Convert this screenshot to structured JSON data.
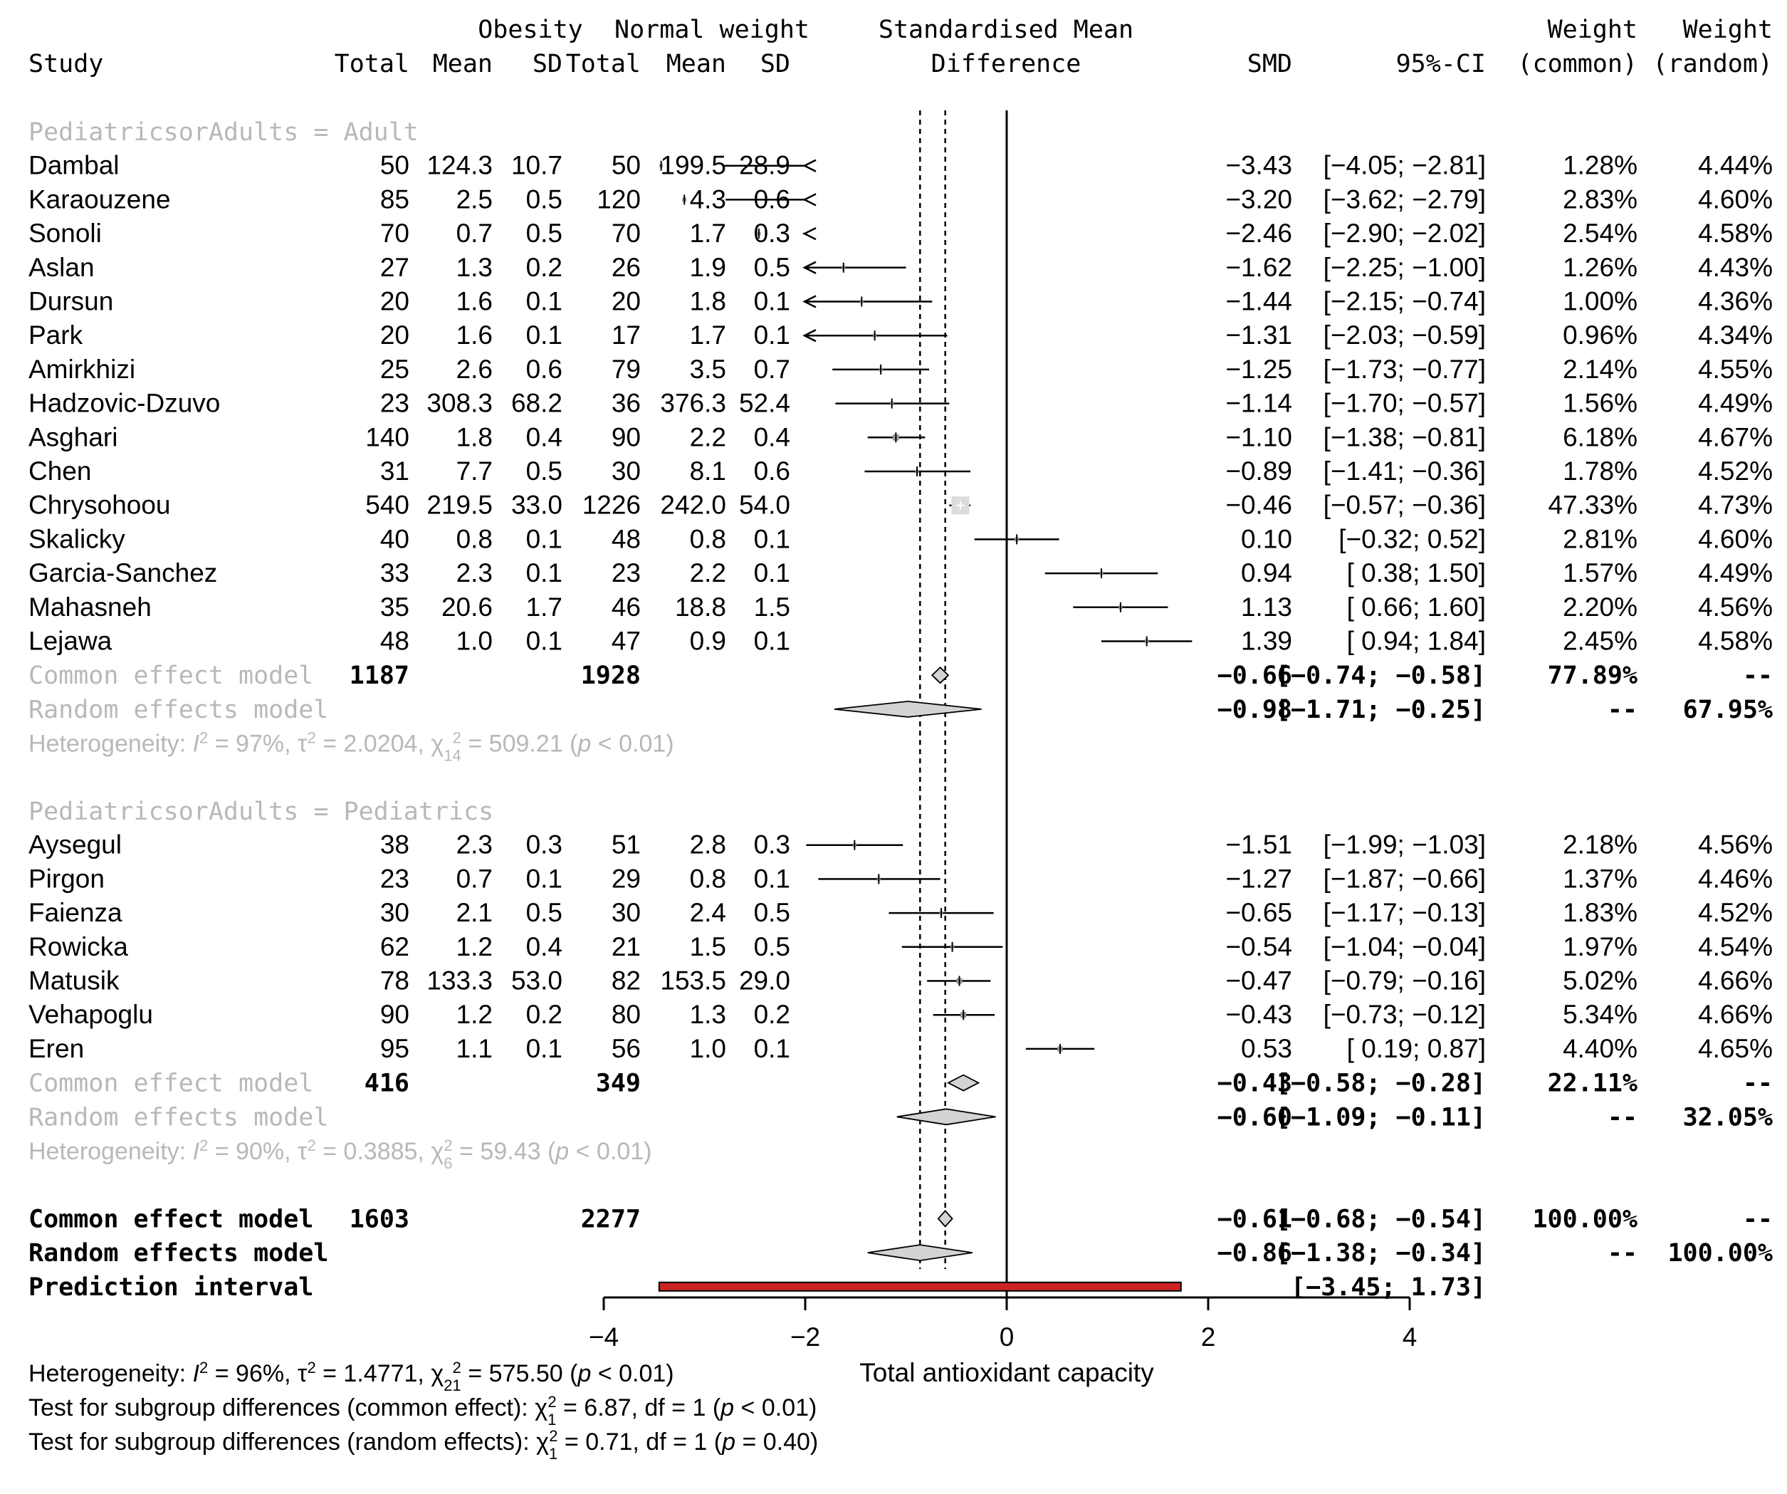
{
  "header": {
    "obesity": "Obesity",
    "normal_weight": "Normal weight",
    "smd_head_1": "Standardised Mean",
    "smd_head_2": "Difference",
    "weight_1": "Weight",
    "weight_2": "Weight",
    "study": "Study",
    "total_o": "Total",
    "mean_o": "Mean",
    "sd_o": "SD",
    "total_n": "Total",
    "mean_n": "Mean",
    "sd_n": "SD",
    "smd": "SMD",
    "ci": "95%-CI",
    "w_common": "(common)",
    "w_random": "(random)"
  },
  "chart_data": {
    "type": "forest",
    "title": "Standardised Mean Difference",
    "xlabel": "Total antioxidant capacity",
    "xlim": [
      -4,
      4
    ],
    "xticks": [
      "-4",
      "-2",
      "0",
      "2",
      "4"
    ],
    "common_overall_smd": -0.61,
    "random_overall_smd": -0.86,
    "groups": [
      {
        "label": "PediatricsorAdults = Adult",
        "studies": [
          {
            "study": "Dambal",
            "t1": "50",
            "m1": "124.3",
            "s1": "10.7",
            "t2": "50",
            "m2": "199.5",
            "s2": "28.9",
            "smd": -3.43,
            "lo": -4.05,
            "hi": -2.81,
            "smd_txt": "-3.43",
            "ci_txt": "[-4.05; -2.81]",
            "wc": "1.28%",
            "wr": "4.44%",
            "wcn": 1.28
          },
          {
            "study": "Karaouzene",
            "t1": "85",
            "m1": "2.5",
            "s1": "0.5",
            "t2": "120",
            "m2": "4.3",
            "s2": "0.6",
            "smd": -3.2,
            "lo": -3.62,
            "hi": -2.79,
            "smd_txt": "-3.20",
            "ci_txt": "[-3.62; -2.79]",
            "wc": "2.83%",
            "wr": "4.60%",
            "wcn": 2.83
          },
          {
            "study": "Sonoli",
            "t1": "70",
            "m1": "0.7",
            "s1": "0.5",
            "t2": "70",
            "m2": "1.7",
            "s2": "0.3",
            "smd": -2.46,
            "lo": -2.9,
            "hi": -2.02,
            "smd_txt": "-2.46",
            "ci_txt": "[-2.90; -2.02]",
            "wc": "2.54%",
            "wr": "4.58%",
            "wcn": 2.54
          },
          {
            "study": "Aslan",
            "t1": "27",
            "m1": "1.3",
            "s1": "0.2",
            "t2": "26",
            "m2": "1.9",
            "s2": "0.5",
            "smd": -1.62,
            "lo": -2.25,
            "hi": -1.0,
            "smd_txt": "-1.62",
            "ci_txt": "[-2.25; -1.00]",
            "wc": "1.26%",
            "wr": "4.43%",
            "wcn": 1.26
          },
          {
            "study": "Dursun",
            "t1": "20",
            "m1": "1.6",
            "s1": "0.1",
            "t2": "20",
            "m2": "1.8",
            "s2": "0.1",
            "smd": -1.44,
            "lo": -2.15,
            "hi": -0.74,
            "smd_txt": "-1.44",
            "ci_txt": "[-2.15; -0.74]",
            "wc": "1.00%",
            "wr": "4.36%",
            "wcn": 1.0
          },
          {
            "study": "Park",
            "t1": "20",
            "m1": "1.6",
            "s1": "0.1",
            "t2": "17",
            "m2": "1.7",
            "s2": "0.1",
            "smd": -1.31,
            "lo": -2.03,
            "hi": -0.59,
            "smd_txt": "-1.31",
            "ci_txt": "[-2.03; -0.59]",
            "wc": "0.96%",
            "wr": "4.34%",
            "wcn": 0.96
          },
          {
            "study": "Amirkhizi",
            "t1": "25",
            "m1": "2.6",
            "s1": "0.6",
            "t2": "79",
            "m2": "3.5",
            "s2": "0.7",
            "smd": -1.25,
            "lo": -1.73,
            "hi": -0.77,
            "smd_txt": "-1.25",
            "ci_txt": "[-1.73; -0.77]",
            "wc": "2.14%",
            "wr": "4.55%",
            "wcn": 2.14
          },
          {
            "study": "Hadzovic-Dzuvo",
            "t1": "23",
            "m1": "308.3",
            "s1": "68.2",
            "t2": "36",
            "m2": "376.3",
            "s2": "52.4",
            "smd": -1.14,
            "lo": -1.7,
            "hi": -0.57,
            "smd_txt": "-1.14",
            "ci_txt": "[-1.70; -0.57]",
            "wc": "1.56%",
            "wr": "4.49%",
            "wcn": 1.56
          },
          {
            "study": "Asghari",
            "t1": "140",
            "m1": "1.8",
            "s1": "0.4",
            "t2": "90",
            "m2": "2.2",
            "s2": "0.4",
            "smd": -1.1,
            "lo": -1.38,
            "hi": -0.81,
            "smd_txt": "-1.10",
            "ci_txt": "[-1.38; -0.81]",
            "wc": "6.18%",
            "wr": "4.67%",
            "wcn": 6.18
          },
          {
            "study": "Chen",
            "t1": "31",
            "m1": "7.7",
            "s1": "0.5",
            "t2": "30",
            "m2": "8.1",
            "s2": "0.6",
            "smd": -0.89,
            "lo": -1.41,
            "hi": -0.36,
            "smd_txt": "-0.89",
            "ci_txt": "[-1.41; -0.36]",
            "wc": "1.78%",
            "wr": "4.52%",
            "wcn": 1.78
          },
          {
            "study": "Chrysohoou",
            "t1": "540",
            "m1": "219.5",
            "s1": "33.0",
            "t2": "1226",
            "m2": "242.0",
            "s2": "54.0",
            "smd": -0.46,
            "lo": -0.57,
            "hi": -0.36,
            "smd_txt": "-0.46",
            "ci_txt": "[-0.57; -0.36]",
            "wc": "47.33%",
            "wr": "4.73%",
            "wcn": 47.33
          },
          {
            "study": "Skalicky",
            "t1": "40",
            "m1": "0.8",
            "s1": "0.1",
            "t2": "48",
            "m2": "0.8",
            "s2": "0.1",
            "smd": 0.1,
            "lo": -0.32,
            "hi": 0.52,
            "smd_txt": "0.10",
            "ci_txt": "[-0.32; 0.52]",
            "wc": "2.81%",
            "wr": "4.60%",
            "wcn": 2.81
          },
          {
            "study": "Garcia-Sanchez",
            "t1": "33",
            "m1": "2.3",
            "s1": "0.1",
            "t2": "23",
            "m2": "2.2",
            "s2": "0.1",
            "smd": 0.94,
            "lo": 0.38,
            "hi": 1.5,
            "smd_txt": "0.94",
            "ci_txt": "[ 0.38; 1.50]",
            "wc": "1.57%",
            "wr": "4.49%",
            "wcn": 1.57
          },
          {
            "study": "Mahasneh",
            "t1": "35",
            "m1": "20.6",
            "s1": "1.7",
            "t2": "46",
            "m2": "18.8",
            "s2": "1.5",
            "smd": 1.13,
            "lo": 0.66,
            "hi": 1.6,
            "smd_txt": "1.13",
            "ci_txt": "[ 0.66; 1.60]",
            "wc": "2.20%",
            "wr": "4.56%",
            "wcn": 2.2
          },
          {
            "study": "Lejawa",
            "t1": "48",
            "m1": "1.0",
            "s1": "0.1",
            "t2": "47",
            "m2": "0.9",
            "s2": "0.1",
            "smd": 1.39,
            "lo": 0.94,
            "hi": 1.84,
            "smd_txt": "1.39",
            "ci_txt": "[ 0.94; 1.84]",
            "wc": "2.45%",
            "wr": "4.58%",
            "wcn": 2.45
          }
        ],
        "common": {
          "label": "Common effect model",
          "t1": "1187",
          "t2": "1928",
          "smd": -0.66,
          "lo": -0.74,
          "hi": -0.58,
          "smd_txt": "-0.66",
          "ci_txt": "[-0.74; -0.58]",
          "wc": "77.89%",
          "wr": "--"
        },
        "random": {
          "label": "Random effects model",
          "smd": -0.98,
          "lo": -1.71,
          "hi": -0.25,
          "smd_txt": "-0.98",
          "ci_txt": "[-1.71; -0.25]",
          "wc": "--",
          "wr": "67.95%"
        },
        "het": {
          "a": "Heterogeneity: ",
          "i2": "I",
          "b": " = 97%, ",
          "tau": "τ",
          "c": " = 2.0204, ",
          "chi": "χ",
          "df": "14",
          "d": " = 509.21 (",
          "p": "p",
          "e": " < 0.01)"
        }
      },
      {
        "label": "PediatricsorAdults = Pediatrics",
        "studies": [
          {
            "study": "Aysegul",
            "t1": "38",
            "m1": "2.3",
            "s1": "0.3",
            "t2": "51",
            "m2": "2.8",
            "s2": "0.3",
            "smd": -1.51,
            "lo": -1.99,
            "hi": -1.03,
            "smd_txt": "-1.51",
            "ci_txt": "[-1.99; -1.03]",
            "wc": "2.18%",
            "wr": "4.56%",
            "wcn": 2.18
          },
          {
            "study": "Pirgon",
            "t1": "23",
            "m1": "0.7",
            "s1": "0.1",
            "t2": "29",
            "m2": "0.8",
            "s2": "0.1",
            "smd": -1.27,
            "lo": -1.87,
            "hi": -0.66,
            "smd_txt": "-1.27",
            "ci_txt": "[-1.87; -0.66]",
            "wc": "1.37%",
            "wr": "4.46%",
            "wcn": 1.37
          },
          {
            "study": "Faienza",
            "t1": "30",
            "m1": "2.1",
            "s1": "0.5",
            "t2": "30",
            "m2": "2.4",
            "s2": "0.5",
            "smd": -0.65,
            "lo": -1.17,
            "hi": -0.13,
            "smd_txt": "-0.65",
            "ci_txt": "[-1.17; -0.13]",
            "wc": "1.83%",
            "wr": "4.52%",
            "wcn": 1.83
          },
          {
            "study": "Rowicka",
            "t1": "62",
            "m1": "1.2",
            "s1": "0.4",
            "t2": "21",
            "m2": "1.5",
            "s2": "0.5",
            "smd": -0.54,
            "lo": -1.04,
            "hi": -0.04,
            "smd_txt": "-0.54",
            "ci_txt": "[-1.04; -0.04]",
            "wc": "1.97%",
            "wr": "4.54%",
            "wcn": 1.97
          },
          {
            "study": "Matusik",
            "t1": "78",
            "m1": "133.3",
            "s1": "53.0",
            "t2": "82",
            "m2": "153.5",
            "s2": "29.0",
            "smd": -0.47,
            "lo": -0.79,
            "hi": -0.16,
            "smd_txt": "-0.47",
            "ci_txt": "[-0.79; -0.16]",
            "wc": "5.02%",
            "wr": "4.66%",
            "wcn": 5.02
          },
          {
            "study": "Vehapoglu",
            "t1": "90",
            "m1": "1.2",
            "s1": "0.2",
            "t2": "80",
            "m2": "1.3",
            "s2": "0.2",
            "smd": -0.43,
            "lo": -0.73,
            "hi": -0.12,
            "smd_txt": "-0.43",
            "ci_txt": "[-0.73; -0.12]",
            "wc": "5.34%",
            "wr": "4.66%",
            "wcn": 5.34
          },
          {
            "study": "Eren",
            "t1": "95",
            "m1": "1.1",
            "s1": "0.1",
            "t2": "56",
            "m2": "1.0",
            "s2": "0.1",
            "smd": 0.53,
            "lo": 0.19,
            "hi": 0.87,
            "smd_txt": "0.53",
            "ci_txt": "[ 0.19; 0.87]",
            "wc": "4.40%",
            "wr": "4.65%",
            "wcn": 4.4
          }
        ],
        "common": {
          "label": "Common effect model",
          "t1": "416",
          "t2": "349",
          "smd": -0.43,
          "lo": -0.58,
          "hi": -0.28,
          "smd_txt": "-0.43",
          "ci_txt": "[-0.58; -0.28]",
          "wc": "22.11%",
          "wr": "--"
        },
        "random": {
          "label": "Random effects model",
          "smd": -0.6,
          "lo": -1.09,
          "hi": -0.11,
          "smd_txt": "-0.60",
          "ci_txt": "[-1.09; -0.11]",
          "wc": "--",
          "wr": "32.05%"
        },
        "het": {
          "a": "Heterogeneity: ",
          "i2": "I",
          "b": " = 90%, ",
          "tau": "τ",
          "c": " = 0.3885, ",
          "chi": "χ",
          "df": "6",
          "d": " = 59.43 (",
          "p": "p",
          "e": " < 0.01)"
        }
      }
    ],
    "overall": {
      "common": {
        "label": "Common effect model",
        "t1": "1603",
        "t2": "2277",
        "smd": -0.61,
        "lo": -0.68,
        "hi": -0.54,
        "smd_txt": "-0.61",
        "ci_txt": "[-0.68; -0.54]",
        "wc": "100.00%",
        "wr": "--"
      },
      "random": {
        "label": "Random effects model",
        "smd": -0.86,
        "lo": -1.38,
        "hi": -0.34,
        "smd_txt": "-0.86",
        "ci_txt": "[-1.38; -0.34]",
        "wc": "--",
        "wr": "100.00%"
      },
      "prediction": {
        "label": "Prediction interval",
        "lo": -3.45,
        "hi": 1.73,
        "ci_txt": "[-3.45; 1.73]"
      }
    },
    "footer": [
      {
        "a": "Heterogeneity: ",
        "i2": "I",
        "b": " = 96%, ",
        "tau": "τ",
        "c": " = 1.4771, ",
        "chi": "χ",
        "df": "21",
        "d": " = 575.50 (",
        "p": "p",
        "e": " < 0.01)"
      },
      {
        "a": "Test for subgroup differences (common effect): ",
        "chi": "χ",
        "df": "1",
        "d": " = 6.87, df = 1 (",
        "p": "p",
        "e": " < 0.01)"
      },
      {
        "a": "Test for subgroup differences (random effects): ",
        "chi": "χ",
        "df": "1",
        "d": " = 0.71, df = 1 (",
        "p": "p",
        "e": " = 0.40)"
      }
    ],
    "colors": {
      "prediction_fill": "#cc2222",
      "diamond_fill": "#d3d3d3",
      "gray_text": "#b8b8b8"
    }
  }
}
